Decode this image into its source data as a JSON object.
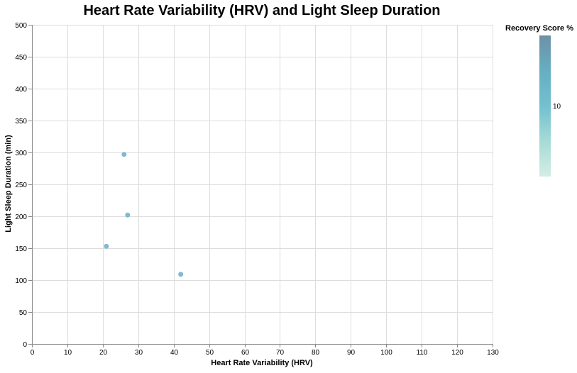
{
  "chart_data": {
    "type": "scatter",
    "title": "Heart Rate Variability (HRV) and Light Sleep Duration",
    "xlabel": "Heart Rate Variability (HRV)",
    "ylabel": "Light Sleep Duration (min)",
    "xlim": [
      0,
      130
    ],
    "ylim": [
      0,
      500
    ],
    "xticks": [
      0,
      10,
      20,
      30,
      40,
      50,
      60,
      70,
      80,
      90,
      100,
      110,
      120,
      130
    ],
    "yticks": [
      0,
      50,
      100,
      150,
      200,
      250,
      300,
      350,
      400,
      450,
      500
    ],
    "grid": true,
    "points": [
      {
        "x": 26,
        "y": 297,
        "recovery": 8
      },
      {
        "x": 27,
        "y": 202,
        "recovery": 8
      },
      {
        "x": 21,
        "y": 153,
        "recovery": 8
      },
      {
        "x": 42,
        "y": 109,
        "recovery": 8
      }
    ],
    "legend": {
      "title": "Recovery Score %",
      "placement": "top-right",
      "domain": [
        0,
        20
      ],
      "tick_values": [
        10
      ],
      "tick_labels": [
        "10"
      ],
      "colors": [
        "#d4ede4",
        "#a6dbd6",
        "#73c0cf",
        "#66aec1",
        "#6f90a6"
      ]
    },
    "point_color": "#73b4cf"
  }
}
